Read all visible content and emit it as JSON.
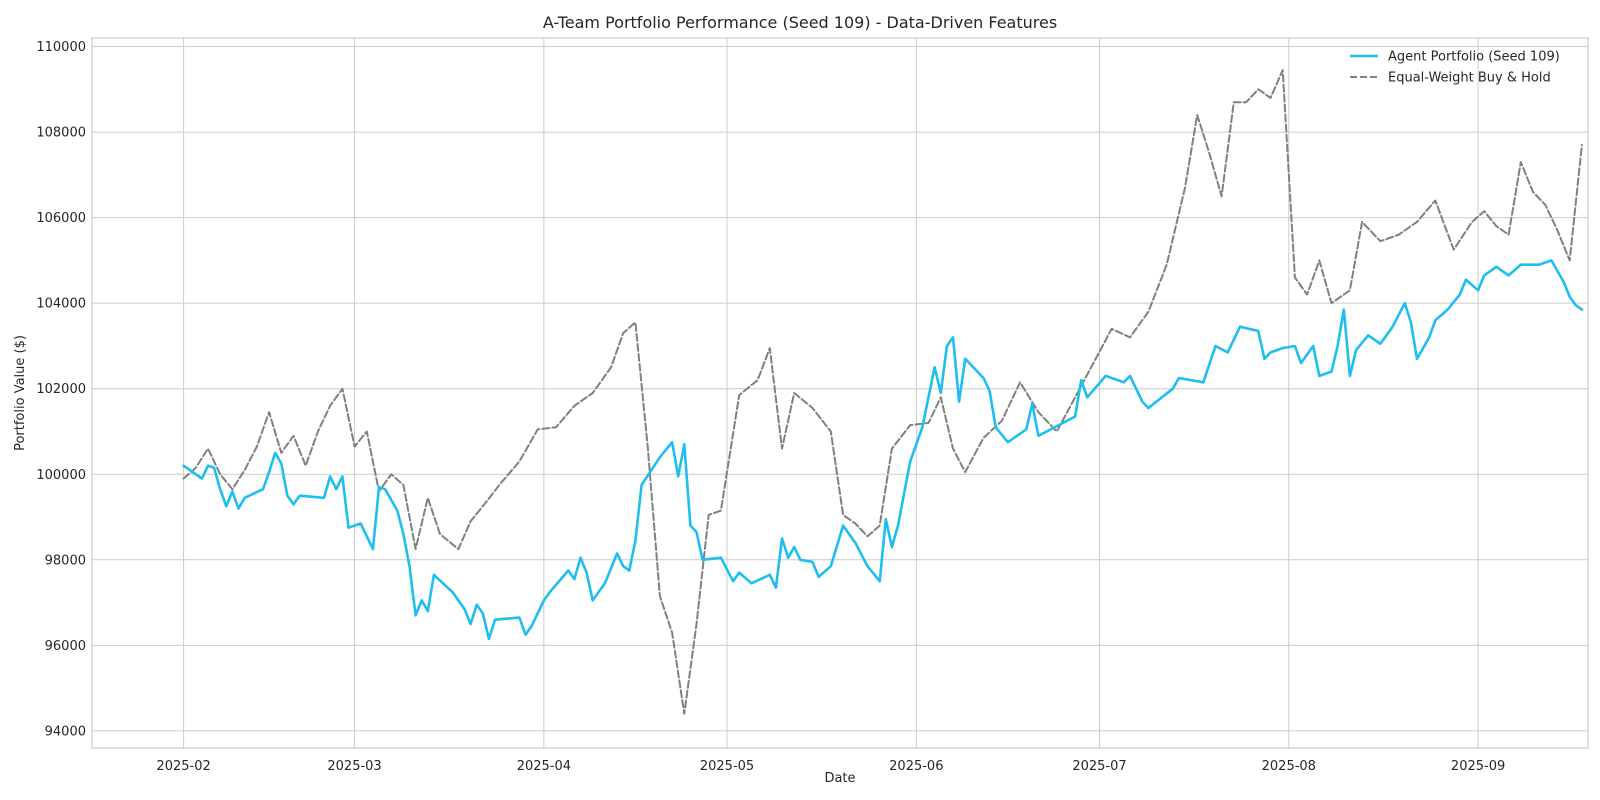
{
  "chart_data": {
    "type": "line",
    "title": "A-Team Portfolio Performance (Seed 109) - Data-Driven Features",
    "xlabel": "Date",
    "ylabel": "Portfolio Value ($)",
    "x_type": "date",
    "xlim": [
      "2025-01-17",
      "2025-09-19"
    ],
    "ylim": [
      93600,
      110200
    ],
    "x_ticks": [
      "2025-02-01",
      "2025-03-01",
      "2025-04-01",
      "2025-05-01",
      "2025-06-01",
      "2025-07-01",
      "2025-08-01",
      "2025-09-01"
    ],
    "x_tick_labels": [
      "2025-02",
      "2025-03",
      "2025-04",
      "2025-05",
      "2025-06",
      "2025-07",
      "2025-08",
      "2025-09"
    ],
    "y_ticks": [
      94000,
      96000,
      98000,
      100000,
      102000,
      104000,
      106000,
      108000,
      110000
    ],
    "y_tick_labels": [
      "94000",
      "96000",
      "98000",
      "100000",
      "102000",
      "104000",
      "106000",
      "108000",
      "110000"
    ],
    "grid": true,
    "legend_position": "top-right",
    "series": [
      {
        "name": "Agent Portfolio (Seed 109)",
        "color": "#1ebff0",
        "style": "solid",
        "points": [
          [
            "2025-02-01",
            100200
          ],
          [
            "2025-02-04",
            99900
          ],
          [
            "2025-02-05",
            100200
          ],
          [
            "2025-02-06",
            100150
          ],
          [
            "2025-02-07",
            99650
          ],
          [
            "2025-02-08",
            99250
          ],
          [
            "2025-02-09",
            99600
          ],
          [
            "2025-02-10",
            99200
          ],
          [
            "2025-02-11",
            99450
          ],
          [
            "2025-02-14",
            99650
          ],
          [
            "2025-02-15",
            100050
          ],
          [
            "2025-02-16",
            100500
          ],
          [
            "2025-02-17",
            100250
          ],
          [
            "2025-02-18",
            99500
          ],
          [
            "2025-02-19",
            99300
          ],
          [
            "2025-02-20",
            99500
          ],
          [
            "2025-02-24",
            99450
          ],
          [
            "2025-02-25",
            99950
          ],
          [
            "2025-02-26",
            99650
          ],
          [
            "2025-02-27",
            99950
          ],
          [
            "2025-02-28",
            98750
          ],
          [
            "2025-03-02",
            98850
          ],
          [
            "2025-03-03",
            98550
          ],
          [
            "2025-03-04",
            98250
          ],
          [
            "2025-03-05",
            99700
          ],
          [
            "2025-03-06",
            99650
          ],
          [
            "2025-03-08",
            99150
          ],
          [
            "2025-03-09",
            98600
          ],
          [
            "2025-03-10",
            97850
          ],
          [
            "2025-03-11",
            96700
          ],
          [
            "2025-03-12",
            97050
          ],
          [
            "2025-03-13",
            96800
          ],
          [
            "2025-03-14",
            97650
          ],
          [
            "2025-03-17",
            97250
          ],
          [
            "2025-03-19",
            96850
          ],
          [
            "2025-03-20",
            96500
          ],
          [
            "2025-03-21",
            96950
          ],
          [
            "2025-03-22",
            96750
          ],
          [
            "2025-03-23",
            96150
          ],
          [
            "2025-03-24",
            96600
          ],
          [
            "2025-03-28",
            96650
          ],
          [
            "2025-03-29",
            96250
          ],
          [
            "2025-03-30",
            96450
          ],
          [
            "2025-04-01",
            97050
          ],
          [
            "2025-04-02",
            97250
          ],
          [
            "2025-04-05",
            97750
          ],
          [
            "2025-04-06",
            97550
          ],
          [
            "2025-04-07",
            98050
          ],
          [
            "2025-04-08",
            97700
          ],
          [
            "2025-04-09",
            97050
          ],
          [
            "2025-04-11",
            97450
          ],
          [
            "2025-04-13",
            98150
          ],
          [
            "2025-04-14",
            97850
          ],
          [
            "2025-04-15",
            97750
          ],
          [
            "2025-04-16",
            98450
          ],
          [
            "2025-04-17",
            99750
          ],
          [
            "2025-04-20",
            100400
          ],
          [
            "2025-04-22",
            100750
          ],
          [
            "2025-04-23",
            99950
          ],
          [
            "2025-04-24",
            100700
          ],
          [
            "2025-04-25",
            98800
          ],
          [
            "2025-04-26",
            98650
          ],
          [
            "2025-04-27",
            98000
          ],
          [
            "2025-04-30",
            98050
          ],
          [
            "2025-05-02",
            97500
          ],
          [
            "2025-05-03",
            97700
          ],
          [
            "2025-05-05",
            97450
          ],
          [
            "2025-05-08",
            97650
          ],
          [
            "2025-05-09",
            97350
          ],
          [
            "2025-05-10",
            98500
          ],
          [
            "2025-05-11",
            98050
          ],
          [
            "2025-05-12",
            98300
          ],
          [
            "2025-05-13",
            98000
          ],
          [
            "2025-05-15",
            97950
          ],
          [
            "2025-05-16",
            97600
          ],
          [
            "2025-05-18",
            97850
          ],
          [
            "2025-05-20",
            98800
          ],
          [
            "2025-05-22",
            98400
          ],
          [
            "2025-05-24",
            97850
          ],
          [
            "2025-05-26",
            97500
          ],
          [
            "2025-05-27",
            98950
          ],
          [
            "2025-05-28",
            98300
          ],
          [
            "2025-05-29",
            98800
          ],
          [
            "2025-05-31",
            100300
          ],
          [
            "2025-06-02",
            101100
          ],
          [
            "2025-06-04",
            102500
          ],
          [
            "2025-06-05",
            101900
          ],
          [
            "2025-06-06",
            103000
          ],
          [
            "2025-06-07",
            103200
          ],
          [
            "2025-06-08",
            101700
          ],
          [
            "2025-06-09",
            102700
          ],
          [
            "2025-06-12",
            102250
          ],
          [
            "2025-06-13",
            101950
          ],
          [
            "2025-06-14",
            101100
          ],
          [
            "2025-06-16",
            100750
          ],
          [
            "2025-06-19",
            101050
          ],
          [
            "2025-06-20",
            101650
          ],
          [
            "2025-06-21",
            100900
          ],
          [
            "2025-06-23",
            101050
          ],
          [
            "2025-06-27",
            101350
          ],
          [
            "2025-06-28",
            102200
          ],
          [
            "2025-06-29",
            101800
          ],
          [
            "2025-07-02",
            102300
          ],
          [
            "2025-07-05",
            102150
          ],
          [
            "2025-07-06",
            102300
          ],
          [
            "2025-07-08",
            101700
          ],
          [
            "2025-07-09",
            101550
          ],
          [
            "2025-07-13",
            102000
          ],
          [
            "2025-07-14",
            102250
          ],
          [
            "2025-07-18",
            102150
          ],
          [
            "2025-07-20",
            103000
          ],
          [
            "2025-07-22",
            102850
          ],
          [
            "2025-07-24",
            103450
          ],
          [
            "2025-07-27",
            103350
          ],
          [
            "2025-07-28",
            102700
          ],
          [
            "2025-07-29",
            102850
          ],
          [
            "2025-07-31",
            102950
          ],
          [
            "2025-08-02",
            103000
          ],
          [
            "2025-08-03",
            102600
          ],
          [
            "2025-08-05",
            103000
          ],
          [
            "2025-08-06",
            102300
          ],
          [
            "2025-08-08",
            102400
          ],
          [
            "2025-08-09",
            103000
          ],
          [
            "2025-08-10",
            103850
          ],
          [
            "2025-08-11",
            102300
          ],
          [
            "2025-08-12",
            102900
          ],
          [
            "2025-08-14",
            103250
          ],
          [
            "2025-08-16",
            103050
          ],
          [
            "2025-08-18",
            103450
          ],
          [
            "2025-08-20",
            104000
          ],
          [
            "2025-08-21",
            103550
          ],
          [
            "2025-08-22",
            102700
          ],
          [
            "2025-08-24",
            103200
          ],
          [
            "2025-08-25",
            103600
          ],
          [
            "2025-08-27",
            103850
          ],
          [
            "2025-08-29",
            104200
          ],
          [
            "2025-08-30",
            104550
          ],
          [
            "2025-09-01",
            104300
          ],
          [
            "2025-09-02",
            104650
          ],
          [
            "2025-09-04",
            104850
          ],
          [
            "2025-09-06",
            104650
          ],
          [
            "2025-09-08",
            104900
          ],
          [
            "2025-09-11",
            104900
          ],
          [
            "2025-09-13",
            105000
          ],
          [
            "2025-09-14",
            104750
          ],
          [
            "2025-09-15",
            104500
          ],
          [
            "2025-09-16",
            104150
          ],
          [
            "2025-09-17",
            103950
          ],
          [
            "2025-09-18",
            103850
          ]
        ]
      },
      {
        "name": "Equal-Weight Buy & Hold",
        "color": "#808080",
        "style": "dashed",
        "points": [
          [
            "2025-02-01",
            99900
          ],
          [
            "2025-02-03",
            100150
          ],
          [
            "2025-02-05",
            100600
          ],
          [
            "2025-02-07",
            100000
          ],
          [
            "2025-02-09",
            99650
          ],
          [
            "2025-02-11",
            100100
          ],
          [
            "2025-02-13",
            100650
          ],
          [
            "2025-02-15",
            101450
          ],
          [
            "2025-02-17",
            100500
          ],
          [
            "2025-02-19",
            100900
          ],
          [
            "2025-02-21",
            100200
          ],
          [
            "2025-02-23",
            101000
          ],
          [
            "2025-02-25",
            101600
          ],
          [
            "2025-02-27",
            102000
          ],
          [
            "2025-03-01",
            100650
          ],
          [
            "2025-03-03",
            101000
          ],
          [
            "2025-03-05",
            99600
          ],
          [
            "2025-03-07",
            100000
          ],
          [
            "2025-03-09",
            99750
          ],
          [
            "2025-03-11",
            98250
          ],
          [
            "2025-03-13",
            99450
          ],
          [
            "2025-03-15",
            98600
          ],
          [
            "2025-03-18",
            98250
          ],
          [
            "2025-03-20",
            98900
          ],
          [
            "2025-03-22",
            99250
          ],
          [
            "2025-03-25",
            99800
          ],
          [
            "2025-03-28",
            100300
          ],
          [
            "2025-03-31",
            101050
          ],
          [
            "2025-04-03",
            101100
          ],
          [
            "2025-04-06",
            101600
          ],
          [
            "2025-04-09",
            101900
          ],
          [
            "2025-04-12",
            102500
          ],
          [
            "2025-04-14",
            103300
          ],
          [
            "2025-04-16",
            103550
          ],
          [
            "2025-04-18",
            100650
          ],
          [
            "2025-04-20",
            97150
          ],
          [
            "2025-04-22",
            96300
          ],
          [
            "2025-04-24",
            94400
          ],
          [
            "2025-04-26",
            96500
          ],
          [
            "2025-04-28",
            99050
          ],
          [
            "2025-04-30",
            99150
          ],
          [
            "2025-05-03",
            101850
          ],
          [
            "2025-05-06",
            102200
          ],
          [
            "2025-05-08",
            102950
          ],
          [
            "2025-05-10",
            100600
          ],
          [
            "2025-05-12",
            101900
          ],
          [
            "2025-05-15",
            101550
          ],
          [
            "2025-05-18",
            101000
          ],
          [
            "2025-05-20",
            99050
          ],
          [
            "2025-05-22",
            98850
          ],
          [
            "2025-05-24",
            98550
          ],
          [
            "2025-05-26",
            98800
          ],
          [
            "2025-05-28",
            100600
          ],
          [
            "2025-05-31",
            101150
          ],
          [
            "2025-06-03",
            101200
          ],
          [
            "2025-06-05",
            101800
          ],
          [
            "2025-06-07",
            100600
          ],
          [
            "2025-06-09",
            100050
          ],
          [
            "2025-06-12",
            100850
          ],
          [
            "2025-06-15",
            101250
          ],
          [
            "2025-06-18",
            102150
          ],
          [
            "2025-06-21",
            101450
          ],
          [
            "2025-06-24",
            101000
          ],
          [
            "2025-06-27",
            101800
          ],
          [
            "2025-06-30",
            102600
          ],
          [
            "2025-07-03",
            103400
          ],
          [
            "2025-07-06",
            103200
          ],
          [
            "2025-07-09",
            103800
          ],
          [
            "2025-07-12",
            104900
          ],
          [
            "2025-07-15",
            106700
          ],
          [
            "2025-07-17",
            108400
          ],
          [
            "2025-07-19",
            107500
          ],
          [
            "2025-07-21",
            106500
          ],
          [
            "2025-07-23",
            108700
          ],
          [
            "2025-07-25",
            108700
          ],
          [
            "2025-07-27",
            109000
          ],
          [
            "2025-07-29",
            108800
          ],
          [
            "2025-07-31",
            109450
          ],
          [
            "2025-08-02",
            104600
          ],
          [
            "2025-08-04",
            104200
          ],
          [
            "2025-08-06",
            105000
          ],
          [
            "2025-08-08",
            104000
          ],
          [
            "2025-08-11",
            104300
          ],
          [
            "2025-08-13",
            105900
          ],
          [
            "2025-08-16",
            105450
          ],
          [
            "2025-08-19",
            105600
          ],
          [
            "2025-08-22",
            105900
          ],
          [
            "2025-08-25",
            106400
          ],
          [
            "2025-08-28",
            105250
          ],
          [
            "2025-08-31",
            105900
          ],
          [
            "2025-09-02",
            106150
          ],
          [
            "2025-09-04",
            105800
          ],
          [
            "2025-09-06",
            105600
          ],
          [
            "2025-09-08",
            107300
          ],
          [
            "2025-09-10",
            106600
          ],
          [
            "2025-09-12",
            106300
          ],
          [
            "2025-09-14",
            105700
          ],
          [
            "2025-09-16",
            105000
          ],
          [
            "2025-09-18",
            107700
          ]
        ]
      }
    ]
  }
}
